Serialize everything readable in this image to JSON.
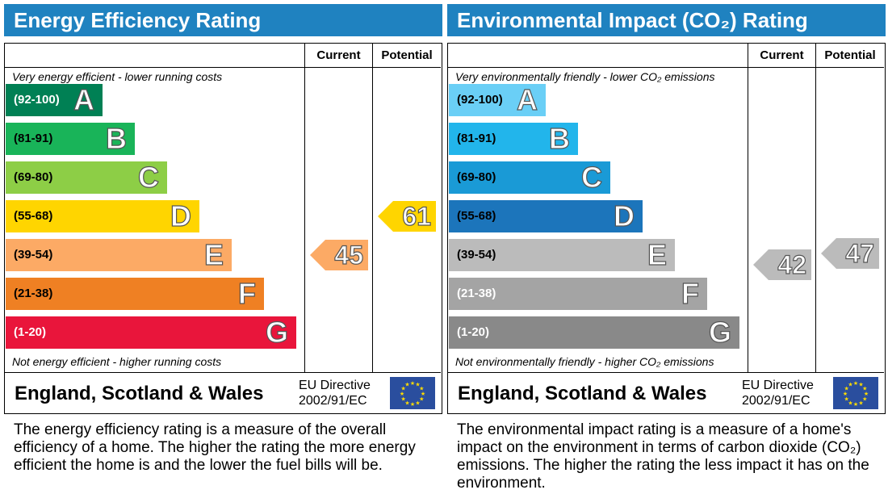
{
  "chart_data": [
    {
      "type": "bar",
      "title": "Energy Efficiency Rating",
      "columns": [
        "Current",
        "Potential"
      ],
      "top_note": "Very energy efficient - lower running costs",
      "bottom_note": "Not energy efficient - higher running costs",
      "bands": [
        {
          "range": "(92-100)",
          "letter": "A",
          "color": "#008054"
        },
        {
          "range": "(81-91)",
          "letter": "B",
          "color": "#19b459"
        },
        {
          "range": "(69-80)",
          "letter": "C",
          "color": "#8dce46"
        },
        {
          "range": "(55-68)",
          "letter": "D",
          "color": "#ffd500"
        },
        {
          "range": "(39-54)",
          "letter": "E",
          "color": "#fcaa65"
        },
        {
          "range": "(21-38)",
          "letter": "F",
          "color": "#ef8023"
        },
        {
          "range": "(1-20)",
          "letter": "G",
          "color": "#e9153b"
        }
      ],
      "current": {
        "value": 45,
        "band": "E",
        "color": "#fcaa65"
      },
      "potential": {
        "value": 61,
        "band": "D",
        "color": "#ffd500"
      },
      "footer": {
        "region": "England, Scotland & Wales",
        "directive_line1": "EU Directive",
        "directive_line2": "2002/91/EC"
      },
      "description": "The energy efficiency rating is a measure of the overall efficiency of a home. The higher the rating the more energy efficient the home is and the lower the fuel bills will be.",
      "header_color": "#1f82c0"
    },
    {
      "type": "bar",
      "title": "Environmental Impact (CO₂) Rating",
      "columns": [
        "Current",
        "Potential"
      ],
      "top_note": "Very environmentally friendly - lower CO₂ emissions",
      "bottom_note": "Not environmentally friendly - higher CO₂ emissions",
      "bands": [
        {
          "range": "(92-100)",
          "letter": "A",
          "color": "#6acff6"
        },
        {
          "range": "(81-91)",
          "letter": "B",
          "color": "#22b5eb"
        },
        {
          "range": "(69-80)",
          "letter": "C",
          "color": "#1a9ad6"
        },
        {
          "range": "(55-68)",
          "letter": "D",
          "color": "#1c75bb"
        },
        {
          "range": "(39-54)",
          "letter": "E",
          "color": "#bbbbbb"
        },
        {
          "range": "(21-38)",
          "letter": "F",
          "color": "#a4a4a4"
        },
        {
          "range": "(1-20)",
          "letter": "G",
          "color": "#898989"
        }
      ],
      "current": {
        "value": 42,
        "band": "E",
        "color": "#bbbbbb"
      },
      "potential": {
        "value": 47,
        "band": "E",
        "color": "#bbbbbb"
      },
      "footer": {
        "region": "England, Scotland & Wales",
        "directive_line1": "EU Directive",
        "directive_line2": "2002/91/EC"
      },
      "description": "The environmental impact rating is a measure of a home's impact on the environment in terms of carbon dioxide (CO₂) emissions. The higher the rating the less impact it has on the environment.",
      "header_color": "#1f82c0"
    }
  ]
}
